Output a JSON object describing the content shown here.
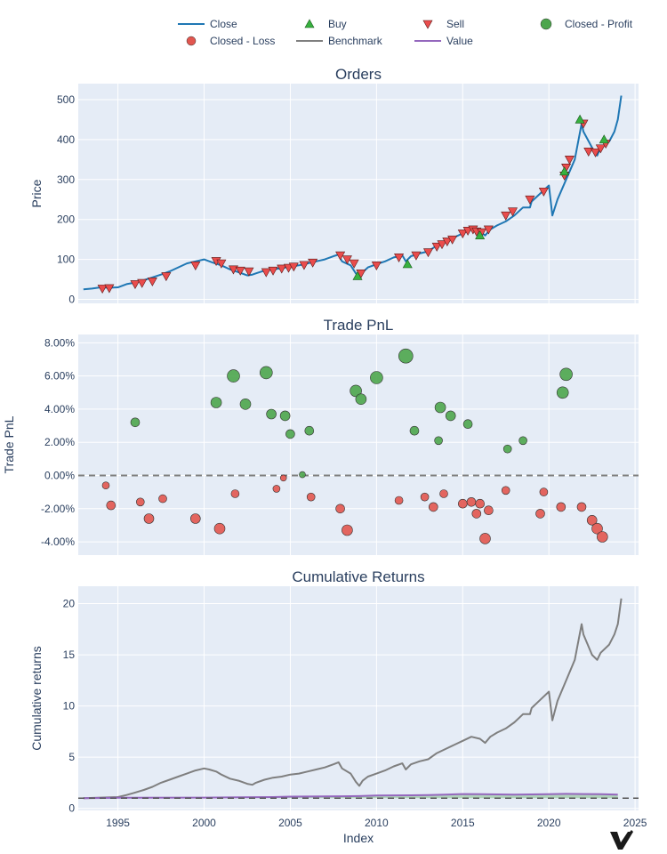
{
  "legend": [
    {
      "label": "Close",
      "kind": "line",
      "color": "#1f77b4"
    },
    {
      "label": "Buy",
      "kind": "triangle-up",
      "color": "#37b13f"
    },
    {
      "label": "Sell",
      "kind": "triangle-down",
      "color": "#ea4c4c"
    },
    {
      "label": "Closed - Profit",
      "kind": "circle",
      "color": "#4ca64c"
    },
    {
      "label": "Closed - Loss",
      "kind": "circle",
      "color": "#e2564f"
    },
    {
      "label": "Benchmark",
      "kind": "line",
      "color": "#7f7f7f"
    },
    {
      "label": "Value",
      "kind": "line",
      "color": "#9467bd"
    }
  ],
  "x_axis": {
    "label": "Index",
    "range": [
      1992.7,
      2025.2
    ],
    "ticks": [
      1995,
      2000,
      2005,
      2010,
      2015,
      2020,
      2025
    ]
  },
  "chart_data": [
    {
      "type": "line",
      "title": "Orders",
      "ylabel": "Price",
      "ylim": [
        -10,
        540
      ],
      "yticks": [
        0,
        100,
        200,
        300,
        400,
        500
      ],
      "series": [
        {
          "name": "Close",
          "color": "#1f77b4",
          "x": [
            1993.0,
            1993.5,
            1994.0,
            1994.5,
            1995.0,
            1995.5,
            1996.0,
            1996.5,
            1997.0,
            1997.5,
            1998.0,
            1998.5,
            1999.0,
            1999.5,
            2000.0,
            2000.5,
            2001.0,
            2001.5,
            2002.0,
            2002.5,
            2002.8,
            2003.0,
            2003.5,
            2004.0,
            2004.5,
            2005.0,
            2005.5,
            2006.0,
            2006.5,
            2007.0,
            2007.5,
            2007.8,
            2008.0,
            2008.5,
            2008.8,
            2009.0,
            2009.2,
            2009.5,
            2010.0,
            2010.5,
            2011.0,
            2011.5,
            2011.7,
            2012.0,
            2012.5,
            2013.0,
            2013.5,
            2014.0,
            2014.5,
            2015.0,
            2015.5,
            2016.0,
            2016.3,
            2016.6,
            2017.0,
            2017.5,
            2018.0,
            2018.5,
            2018.9,
            2019.0,
            2019.5,
            2020.0,
            2020.2,
            2020.5,
            2021.0,
            2021.5,
            2021.9,
            2022.0,
            2022.5,
            2022.8,
            2023.0,
            2023.5,
            2023.8,
            2024.0,
            2024.2
          ],
          "y": [
            25,
            27,
            30,
            29,
            30,
            38,
            42,
            48,
            55,
            62,
            70,
            80,
            90,
            95,
            100,
            92,
            85,
            75,
            68,
            60,
            62,
            65,
            72,
            75,
            78,
            82,
            85,
            90,
            95,
            100,
            108,
            112,
            95,
            85,
            65,
            55,
            68,
            80,
            88,
            95,
            105,
            110,
            95,
            108,
            115,
            120,
            135,
            145,
            155,
            165,
            175,
            170,
            160,
            175,
            185,
            195,
            210,
            230,
            230,
            245,
            265,
            285,
            210,
            250,
            300,
            350,
            440,
            420,
            380,
            360,
            380,
            395,
            420,
            450,
            510
          ]
        }
      ],
      "orders": {
        "buy": [
          [
            2008.9,
            58
          ],
          [
            2011.8,
            88
          ],
          [
            2016.0,
            160
          ],
          [
            2020.9,
            320
          ],
          [
            2021.8,
            450
          ],
          [
            2023.2,
            400
          ]
        ],
        "sell": [
          [
            1994.1,
            27
          ],
          [
            1994.5,
            28
          ],
          [
            1996.0,
            38
          ],
          [
            1996.4,
            41
          ],
          [
            1997.0,
            45
          ],
          [
            1997.8,
            58
          ],
          [
            1999.5,
            85
          ],
          [
            2000.7,
            96
          ],
          [
            2001.0,
            90
          ],
          [
            2001.7,
            75
          ],
          [
            2002.1,
            72
          ],
          [
            2002.6,
            70
          ],
          [
            2003.6,
            68
          ],
          [
            2004.0,
            72
          ],
          [
            2004.5,
            77
          ],
          [
            2004.9,
            79
          ],
          [
            2005.2,
            82
          ],
          [
            2005.8,
            86
          ],
          [
            2006.3,
            92
          ],
          [
            2007.9,
            110
          ],
          [
            2008.3,
            100
          ],
          [
            2008.7,
            90
          ],
          [
            2009.1,
            65
          ],
          [
            2010.0,
            85
          ],
          [
            2011.3,
            105
          ],
          [
            2012.3,
            110
          ],
          [
            2013.0,
            118
          ],
          [
            2013.5,
            132
          ],
          [
            2013.8,
            138
          ],
          [
            2014.1,
            145
          ],
          [
            2014.4,
            150
          ],
          [
            2015.0,
            165
          ],
          [
            2015.3,
            172
          ],
          [
            2015.6,
            175
          ],
          [
            2015.8,
            170
          ],
          [
            2016.1,
            168
          ],
          [
            2016.5,
            175
          ],
          [
            2017.5,
            210
          ],
          [
            2017.9,
            220
          ],
          [
            2018.9,
            250
          ],
          [
            2019.7,
            270
          ],
          [
            2020.9,
            310
          ],
          [
            2021.0,
            330
          ],
          [
            2021.2,
            350
          ],
          [
            2022.0,
            440
          ],
          [
            2022.3,
            370
          ],
          [
            2022.7,
            368
          ],
          [
            2023.0,
            378
          ],
          [
            2023.3,
            390
          ]
        ]
      }
    },
    {
      "type": "scatter",
      "title": "Trade PnL",
      "ylabel": "Trade PnL",
      "ylim": [
        -4.8,
        8.5
      ],
      "yticks": [
        -4,
        -2,
        0,
        2,
        4,
        6,
        8
      ],
      "ytick_labels": [
        "-4.00%",
        "-2.00%",
        "0.00%",
        "2.00%",
        "4.00%",
        "6.00%",
        "8.00%"
      ],
      "series": [
        {
          "name": "Closed - Profit",
          "color": "#4ca64c",
          "points": [
            [
              1996.0,
              3.2,
              5
            ],
            [
              2000.7,
              4.4,
              6
            ],
            [
              2001.7,
              6.0,
              7
            ],
            [
              2002.4,
              4.3,
              6
            ],
            [
              2003.6,
              6.2,
              7
            ],
            [
              2003.9,
              3.7,
              5.5
            ],
            [
              2004.7,
              3.6,
              5.5
            ],
            [
              2005.0,
              2.5,
              5
            ],
            [
              2005.7,
              0.05,
              3.5
            ],
            [
              2006.1,
              2.7,
              5
            ],
            [
              2008.8,
              5.1,
              6.5
            ],
            [
              2009.1,
              4.6,
              6
            ],
            [
              2010.0,
              5.9,
              7
            ],
            [
              2011.7,
              7.2,
              8
            ],
            [
              2012.2,
              2.7,
              5
            ],
            [
              2013.6,
              2.1,
              4.5
            ],
            [
              2013.7,
              4.1,
              6
            ],
            [
              2014.3,
              3.6,
              5.5
            ],
            [
              2015.3,
              3.1,
              5
            ],
            [
              2017.6,
              1.6,
              4.5
            ],
            [
              2018.5,
              2.1,
              4.5
            ],
            [
              2020.8,
              5.0,
              6.5
            ],
            [
              2021.0,
              6.1,
              7
            ]
          ]
        },
        {
          "name": "Closed - Loss",
          "color": "#e2564f",
          "points": [
            [
              1994.3,
              -0.6,
              4
            ],
            [
              1994.6,
              -1.8,
              5
            ],
            [
              1996.3,
              -1.6,
              4.5
            ],
            [
              1996.8,
              -2.6,
              5.5
            ],
            [
              1997.6,
              -1.4,
              4.5
            ],
            [
              1999.5,
              -2.6,
              5.5
            ],
            [
              2000.9,
              -3.2,
              6
            ],
            [
              2001.8,
              -1.1,
              4.5
            ],
            [
              2004.2,
              -0.8,
              4
            ],
            [
              2004.6,
              -0.15,
              3.5
            ],
            [
              2006.2,
              -1.3,
              4.5
            ],
            [
              2007.9,
              -2.0,
              5
            ],
            [
              2008.3,
              -3.3,
              6
            ],
            [
              2011.3,
              -1.5,
              4.5
            ],
            [
              2012.8,
              -1.3,
              4.5
            ],
            [
              2013.3,
              -1.9,
              5
            ],
            [
              2013.9,
              -1.1,
              4.5
            ],
            [
              2015.0,
              -1.7,
              5
            ],
            [
              2015.5,
              -1.6,
              5
            ],
            [
              2015.8,
              -2.3,
              5
            ],
            [
              2016.0,
              -1.7,
              5
            ],
            [
              2016.3,
              -3.8,
              6
            ],
            [
              2016.5,
              -2.1,
              5
            ],
            [
              2017.5,
              -0.9,
              4.5
            ],
            [
              2019.5,
              -2.3,
              5
            ],
            [
              2019.7,
              -1.0,
              4.5
            ],
            [
              2020.7,
              -1.9,
              5
            ],
            [
              2021.9,
              -1.9,
              5
            ],
            [
              2022.5,
              -2.7,
              5.5
            ],
            [
              2022.8,
              -3.2,
              6
            ],
            [
              2023.1,
              -3.7,
              6
            ]
          ]
        }
      ],
      "zero_line": 0
    },
    {
      "type": "line",
      "title": "Cumulative Returns",
      "ylabel": "Cumulative returns",
      "ylim": [
        -0.2,
        21.7
      ],
      "yticks": [
        0,
        5,
        10,
        15,
        20
      ],
      "series": [
        {
          "name": "Benchmark",
          "color": "#7f7f7f",
          "x": [
            1993.0,
            1994.0,
            1995.0,
            1995.5,
            1996.0,
            1996.5,
            1997.0,
            1997.5,
            1998.0,
            1998.5,
            1999.0,
            1999.5,
            2000.0,
            2000.3,
            2000.7,
            2001.0,
            2001.5,
            2002.0,
            2002.5,
            2002.8,
            2003.0,
            2003.5,
            2004.0,
            2004.5,
            2005.0,
            2005.5,
            2006.0,
            2006.5,
            2007.0,
            2007.5,
            2007.8,
            2008.0,
            2008.5,
            2008.8,
            2009.0,
            2009.2,
            2009.5,
            2010.0,
            2010.5,
            2011.0,
            2011.5,
            2011.7,
            2012.0,
            2012.5,
            2013.0,
            2013.5,
            2014.0,
            2014.5,
            2015.0,
            2015.5,
            2016.0,
            2016.3,
            2016.6,
            2017.0,
            2017.5,
            2018.0,
            2018.5,
            2018.9,
            2019.0,
            2019.5,
            2020.0,
            2020.2,
            2020.5,
            2021.0,
            2021.5,
            2021.9,
            2022.0,
            2022.5,
            2022.8,
            2023.0,
            2023.5,
            2023.8,
            2024.0,
            2024.2
          ],
          "y": [
            1.0,
            1.05,
            1.1,
            1.3,
            1.55,
            1.8,
            2.1,
            2.5,
            2.8,
            3.1,
            3.4,
            3.7,
            3.9,
            3.8,
            3.6,
            3.3,
            2.9,
            2.7,
            2.4,
            2.3,
            2.5,
            2.8,
            3.0,
            3.1,
            3.3,
            3.4,
            3.6,
            3.8,
            4.0,
            4.3,
            4.5,
            3.9,
            3.4,
            2.6,
            2.2,
            2.7,
            3.1,
            3.4,
            3.7,
            4.1,
            4.4,
            3.8,
            4.3,
            4.6,
            4.8,
            5.4,
            5.8,
            6.2,
            6.6,
            7.0,
            6.8,
            6.4,
            7.0,
            7.4,
            7.8,
            8.4,
            9.2,
            9.2,
            9.8,
            10.6,
            11.4,
            8.6,
            10.5,
            12.5,
            14.5,
            18.0,
            17.0,
            15.0,
            14.5,
            15.2,
            16.0,
            17.0,
            18.0,
            20.5
          ]
        },
        {
          "name": "Value",
          "color": "#9467bd",
          "x": [
            1993.0,
            1995.0,
            2000.0,
            2004.0,
            2005.0,
            2008.0,
            2009.0,
            2010.0,
            2012.0,
            2013.0,
            2014.0,
            2015.0,
            2016.0,
            2018.0,
            2020.0,
            2021.0,
            2022.0,
            2023.0,
            2024.0
          ],
          "y": [
            1.0,
            1.03,
            1.05,
            1.1,
            1.15,
            1.18,
            1.2,
            1.25,
            1.28,
            1.3,
            1.35,
            1.4,
            1.38,
            1.35,
            1.38,
            1.42,
            1.4,
            1.38,
            1.35
          ]
        }
      ],
      "baseline": 1
    }
  ]
}
